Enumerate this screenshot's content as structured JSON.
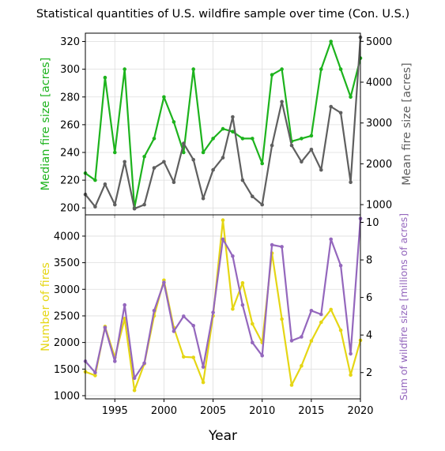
{
  "figure": {
    "title": "Statistical quantities of U.S. wildfire sample over time (Con. U.S.)",
    "xlabel": "Year"
  },
  "colors": {
    "median": "#1db31d",
    "mean": "#5f5f5f",
    "count": "#e5d614",
    "sum": "#9467bd",
    "axis": "#000000",
    "grid": "#dddddd"
  },
  "chart_data": [
    {
      "type": "line",
      "panel": "top",
      "x": [
        1992,
        1993,
        1994,
        1995,
        1996,
        1997,
        1998,
        1999,
        2000,
        2001,
        2002,
        2003,
        2004,
        2005,
        2006,
        2007,
        2008,
        2009,
        2010,
        2011,
        2012,
        2013,
        2014,
        2015,
        2016,
        2017,
        2018,
        2019,
        2020
      ],
      "xlim": [
        1992,
        2020
      ],
      "xticks": [
        1995,
        2000,
        2005,
        2010,
        2015,
        2020
      ],
      "grid": true,
      "y_left": {
        "label": "Median fire size [acres]",
        "lim": [
          195,
          326
        ],
        "ticks": [
          200,
          220,
          240,
          260,
          280,
          300,
          320
        ]
      },
      "y_right": {
        "label": "Mean fire size [acres]",
        "lim": [
          750,
          5200
        ],
        "ticks": [
          1000,
          2000,
          3000,
          4000,
          5000
        ]
      },
      "series": [
        {
          "axis": "left",
          "color": "median",
          "values": [
            225,
            220,
            294,
            240,
            300,
            200,
            237,
            250,
            280,
            262,
            240,
            300,
            240,
            250,
            257,
            255,
            250,
            250,
            232,
            296,
            300,
            248,
            250,
            252,
            300,
            320,
            300,
            280,
            308
          ]
        },
        {
          "axis": "right",
          "color": "mean",
          "values": [
            1250,
            950,
            1500,
            1000,
            2050,
            900,
            1000,
            1900,
            2050,
            1550,
            2500,
            2100,
            1150,
            1850,
            2150,
            3150,
            1600,
            1200,
            1000,
            2450,
            3520,
            2450,
            2050,
            2350,
            1850,
            3400,
            3250,
            1550,
            5100
          ]
        }
      ]
    },
    {
      "type": "line",
      "panel": "bottom",
      "x": [
        1992,
        1993,
        1994,
        1995,
        1996,
        1997,
        1998,
        1999,
        2000,
        2001,
        2002,
        2003,
        2004,
        2005,
        2006,
        2007,
        2008,
        2009,
        2010,
        2011,
        2012,
        2013,
        2014,
        2015,
        2016,
        2017,
        2018,
        2019,
        2020
      ],
      "xlim": [
        1992,
        2020
      ],
      "xticks": [
        1995,
        2000,
        2005,
        2010,
        2015,
        2020
      ],
      "xticklabels": [
        "1995",
        "2000",
        "2005",
        "2010",
        "2015",
        "2020"
      ],
      "grid": true,
      "y_left": {
        "label": "Number of fires",
        "lim": [
          940,
          4400
        ],
        "ticks": [
          1000,
          1500,
          2000,
          2500,
          3000,
          3500,
          4000
        ]
      },
      "y_right": {
        "label": "Sum of wildfire size [millions of acres]",
        "lim": [
          0.6,
          10.4
        ],
        "ticks": [
          2,
          4,
          6,
          8,
          10
        ]
      },
      "series": [
        {
          "axis": "left",
          "color": "count",
          "values": [
            1450,
            1380,
            2300,
            1720,
            2450,
            1100,
            1600,
            2500,
            3170,
            2280,
            1730,
            1720,
            1250,
            2500,
            4300,
            2630,
            3120,
            2350,
            2000,
            3680,
            2440,
            1200,
            1560,
            2030,
            2380,
            2620,
            2230,
            1390,
            2040
          ]
        },
        {
          "axis": "right",
          "color": "sum",
          "values": [
            2.6,
            2.0,
            4.4,
            2.6,
            5.6,
            1.7,
            2.5,
            5.3,
            6.8,
            4.2,
            5.0,
            4.5,
            2.3,
            5.2,
            9.1,
            8.2,
            5.6,
            3.6,
            2.9,
            8.8,
            8.7,
            3.7,
            3.9,
            5.3,
            5.1,
            9.1,
            7.7,
            3.0,
            10.2
          ]
        }
      ]
    }
  ]
}
